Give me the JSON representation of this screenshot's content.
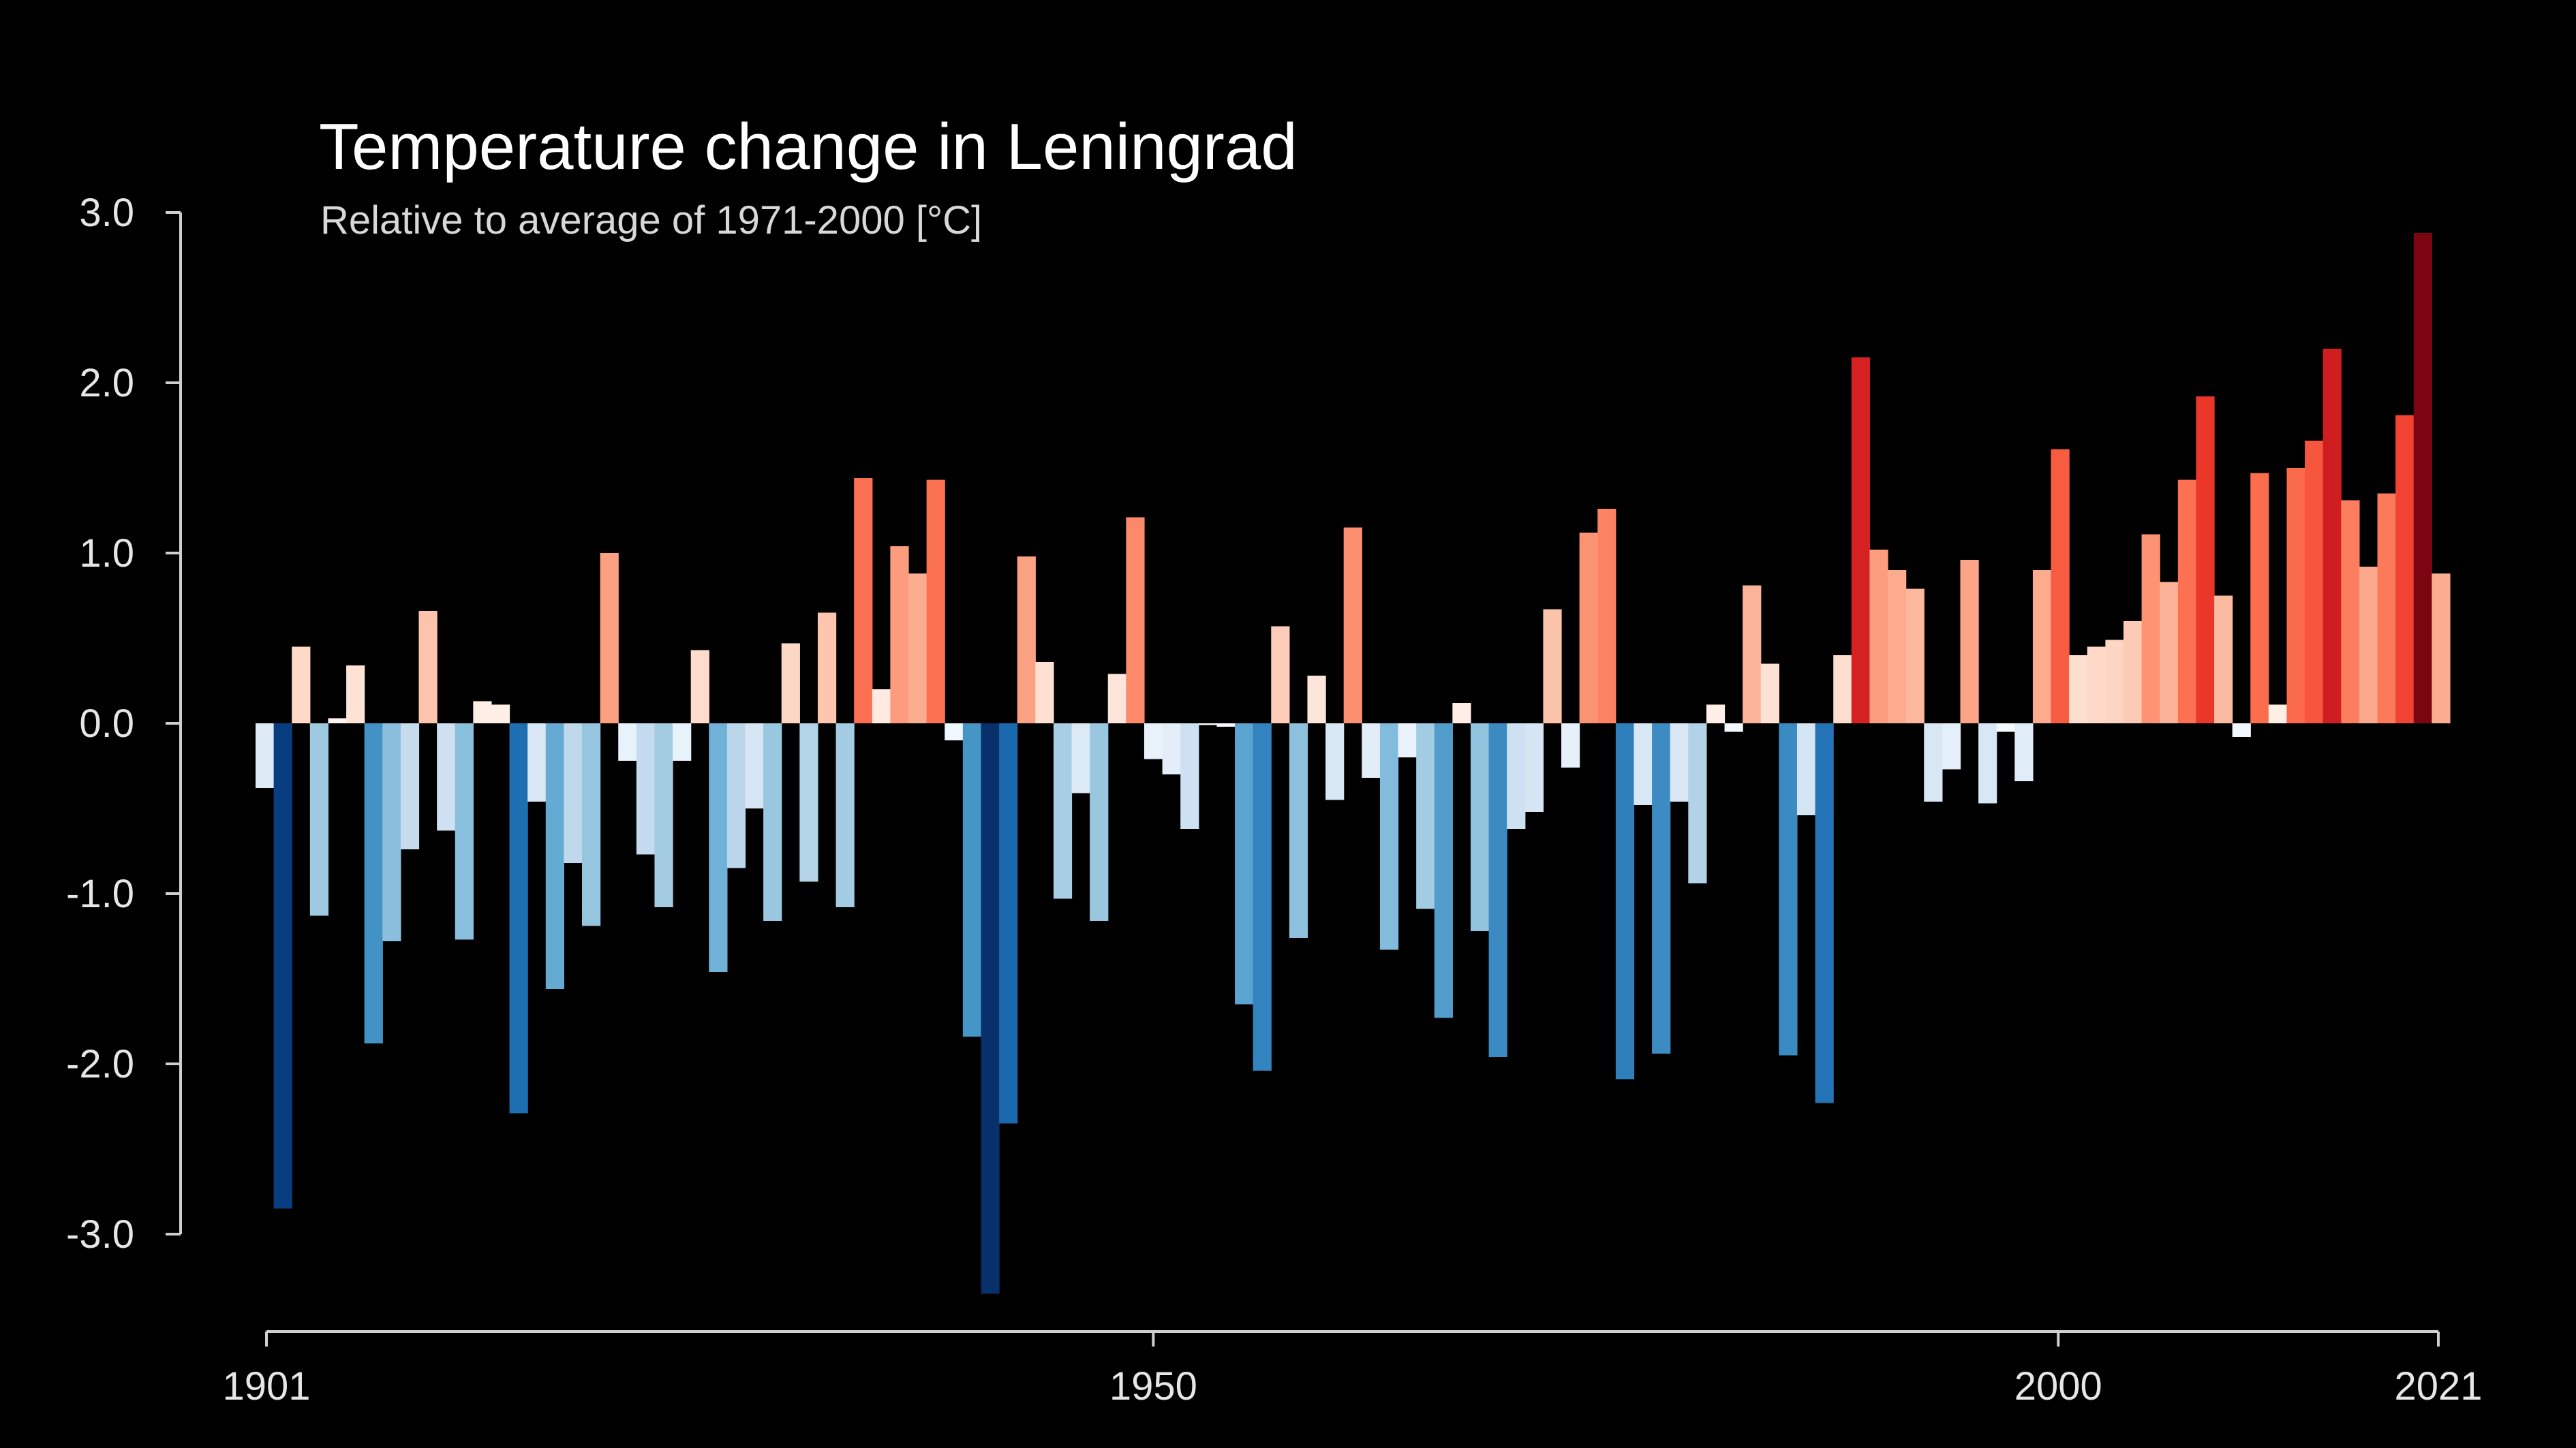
{
  "chart_data": {
    "type": "bar",
    "title": "Temperature change in Leningrad",
    "subtitle": "Relative to average of 1971-2000  [°C]",
    "ylim": [
      -3.4,
      3.0
    ],
    "xlim": [
      1901,
      2021
    ],
    "y_ticks": [
      3.0,
      2.0,
      1.0,
      0.0,
      -1.0,
      -2.0,
      -3.0
    ],
    "y_tick_labels": [
      "3.0",
      "2.0",
      "1.0",
      "0.0",
      "-1.0",
      "-2.0",
      "-3.0"
    ],
    "x_ticks": [
      1901,
      1950,
      2000,
      2021
    ],
    "x_tick_labels": [
      "1901",
      "1950",
      "2000",
      "2021"
    ],
    "grid": false,
    "legend": "none",
    "color_scale": {
      "negative_extreme": "#08306b",
      "neutral": "#f7f7f7",
      "positive_extreme": "#67000d"
    },
    "years": [
      1901,
      1902,
      1903,
      1904,
      1905,
      1906,
      1907,
      1908,
      1909,
      1910,
      1911,
      1912,
      1913,
      1914,
      1915,
      1916,
      1917,
      1918,
      1919,
      1920,
      1921,
      1922,
      1923,
      1924,
      1925,
      1926,
      1927,
      1928,
      1929,
      1930,
      1931,
      1932,
      1933,
      1934,
      1935,
      1936,
      1937,
      1938,
      1939,
      1940,
      1941,
      1942,
      1943,
      1944,
      1945,
      1946,
      1947,
      1948,
      1949,
      1950,
      1951,
      1952,
      1953,
      1954,
      1955,
      1956,
      1957,
      1958,
      1959,
      1960,
      1961,
      1962,
      1963,
      1964,
      1965,
      1966,
      1967,
      1968,
      1969,
      1970,
      1971,
      1972,
      1973,
      1974,
      1975,
      1976,
      1977,
      1978,
      1979,
      1980,
      1981,
      1982,
      1983,
      1984,
      1985,
      1986,
      1987,
      1988,
      1989,
      1990,
      1991,
      1992,
      1993,
      1994,
      1995,
      1996,
      1997,
      1998,
      1999,
      2000,
      2001,
      2002,
      2003,
      2004,
      2005,
      2006,
      2007,
      2008,
      2009,
      2010,
      2011,
      2012,
      2013,
      2014,
      2015,
      2016,
      2017,
      2018,
      2019,
      2020,
      2021
    ],
    "values": [
      -0.38,
      -2.85,
      0.45,
      -1.13,
      0.03,
      0.34,
      -1.88,
      -1.28,
      -0.74,
      0.66,
      -0.63,
      -1.27,
      0.13,
      0.11,
      -2.29,
      -0.46,
      -1.56,
      -0.82,
      -1.19,
      1.0,
      -0.22,
      -0.77,
      -1.08,
      -0.22,
      0.43,
      -1.46,
      -0.85,
      -0.5,
      -1.16,
      0.47,
      -0.93,
      0.65,
      -1.08,
      1.44,
      0.2,
      1.04,
      0.88,
      1.43,
      -0.1,
      -1.84,
      -3.35,
      -2.35,
      0.98,
      0.36,
      -1.03,
      -0.41,
      -1.16,
      0.29,
      1.21,
      -0.21,
      -0.3,
      -0.62,
      -0.01,
      -0.02,
      -1.65,
      -2.04,
      0.57,
      -1.26,
      0.28,
      -0.45,
      1.15,
      -0.32,
      -1.33,
      -0.2,
      -1.09,
      -1.73,
      0.12,
      -1.22,
      -1.96,
      -0.62,
      -0.52,
      0.67,
      -0.26,
      1.12,
      1.26,
      -2.09,
      -0.48,
      -1.94,
      -0.46,
      -0.94,
      0.11,
      -0.05,
      0.81,
      0.35,
      -1.95,
      -0.54,
      -2.23,
      0.4,
      2.15,
      1.02,
      0.9,
      0.79,
      -0.46,
      -0.27,
      0.96,
      -0.47,
      -0.05,
      -0.34,
      0.9,
      1.61,
      0.4,
      0.45,
      0.49,
      0.6,
      1.11,
      0.83,
      1.43,
      1.92,
      0.75,
      -0.08,
      1.47,
      0.11,
      1.5,
      1.66,
      2.2,
      1.31,
      0.92,
      1.35,
      1.81,
      2.88,
      0.88
    ]
  }
}
